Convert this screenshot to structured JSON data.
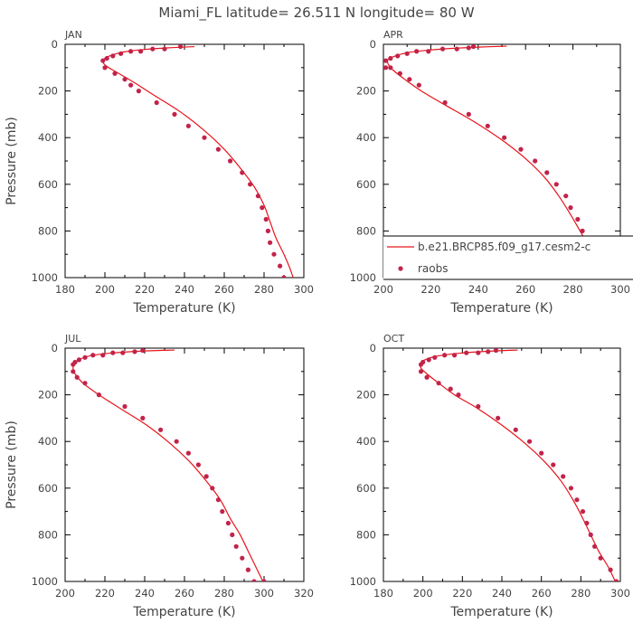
{
  "figure": {
    "title": "Miami_FL   latitude= 26.511 N longitude= 80 W"
  },
  "colors": {
    "model_line": "#e8141a",
    "raobs_marker": "#c2234a",
    "axes": "#000000",
    "text": "#444444"
  },
  "legend": {
    "panel": "APR",
    "placement": "bottom-right",
    "model_label": "b.e21.BRCP85.f09_g17.cesm2-c",
    "obs_label": "raobs"
  },
  "chart_data": [
    {
      "type": "line",
      "panel_label": "JAN",
      "xlabel": "Temperature (K)",
      "ylabel": "Pressure (mb)",
      "xlim": [
        180,
        300
      ],
      "ylim": [
        1000,
        0
      ],
      "xticks": [
        180,
        200,
        220,
        240,
        260,
        280,
        300
      ],
      "yticks": [
        0,
        200,
        400,
        600,
        800,
        1000
      ],
      "grid": false,
      "series": [
        {
          "name": "b.e21.BRCP85.f09_g17.cesm2-c",
          "style": "line",
          "x": [
            245,
            232,
            220,
            210,
            204,
            200,
            199,
            201,
            206,
            214,
            225,
            238,
            250,
            260,
            268,
            275,
            280,
            283,
            286,
            290,
            293,
            295
          ],
          "y": [
            10,
            15,
            22,
            32,
            45,
            60,
            75,
            95,
            120,
            160,
            220,
            290,
            370,
            450,
            530,
            610,
            690,
            760,
            830,
            900,
            960,
            1010
          ]
        },
        {
          "name": "raobs",
          "style": "marker",
          "x": [
            238,
            230,
            224,
            218,
            213,
            208,
            204,
            201,
            199,
            200,
            205,
            210,
            213,
            217,
            226,
            235,
            242,
            250,
            257,
            263,
            269,
            273,
            277,
            279,
            281,
            282,
            283,
            285,
            288,
            290
          ],
          "y": [
            10,
            20,
            20,
            30,
            30,
            40,
            50,
            60,
            70,
            100,
            125,
            150,
            175,
            200,
            250,
            300,
            350,
            400,
            450,
            500,
            550,
            600,
            650,
            700,
            750,
            800,
            850,
            900,
            950,
            1000
          ]
        }
      ]
    },
    {
      "type": "line",
      "panel_label": "APR",
      "xlabel": "Temperature (K)",
      "ylabel": "",
      "xlim": [
        200,
        300
      ],
      "ylim": [
        1000,
        0
      ],
      "xticks": [
        200,
        220,
        240,
        260,
        280,
        300
      ],
      "yticks": [
        0,
        200,
        400,
        600,
        800,
        1000
      ],
      "grid": false,
      "series": [
        {
          "name": "b.e21.BRCP85.f09_g17.cesm2-c",
          "style": "line",
          "x": [
            252,
            240,
            228,
            218,
            210,
            205,
            202,
            202,
            204,
            209,
            216,
            226,
            238,
            250,
            260,
            268,
            274,
            279,
            283,
            287,
            292,
            296
          ],
          "y": [
            8,
            12,
            18,
            26,
            36,
            50,
            65,
            85,
            110,
            150,
            200,
            260,
            330,
            410,
            490,
            570,
            650,
            730,
            800,
            870,
            940,
            1010
          ]
        },
        {
          "name": "raobs",
          "style": "marker",
          "x": [
            238,
            236,
            231,
            225,
            219,
            214,
            210,
            206,
            203,
            201,
            201,
            203,
            207,
            211,
            215,
            226,
            236,
            244,
            251,
            258,
            264,
            269,
            273,
            277,
            279,
            282,
            284,
            286,
            290,
            295
          ],
          "y": [
            10,
            15,
            20,
            20,
            30,
            30,
            40,
            50,
            60,
            70,
            100,
            100,
            125,
            150,
            175,
            250,
            300,
            350,
            400,
            450,
            500,
            550,
            600,
            650,
            700,
            750,
            800,
            850,
            900,
            1000
          ]
        }
      ]
    },
    {
      "type": "line",
      "panel_label": "JUL",
      "xlabel": "Temperature (K)",
      "ylabel": "Pressure (mb)",
      "xlim": [
        200,
        320
      ],
      "ylim": [
        1000,
        0
      ],
      "xticks": [
        200,
        220,
        240,
        260,
        280,
        300,
        320
      ],
      "yticks": [
        0,
        200,
        400,
        600,
        800,
        1000
      ],
      "grid": false,
      "series": [
        {
          "name": "b.e21.BRCP85.f09_g17.cesm2-c",
          "style": "line",
          "x": [
            255,
            240,
            228,
            218,
            211,
            207,
            205,
            204,
            205,
            209,
            217,
            228,
            241,
            253,
            263,
            271,
            278,
            283,
            288,
            292,
            296,
            300
          ],
          "y": [
            8,
            12,
            18,
            26,
            36,
            50,
            65,
            85,
            110,
            150,
            200,
            260,
            330,
            410,
            490,
            570,
            650,
            730,
            800,
            870,
            940,
            1010
          ]
        },
        {
          "name": "raobs",
          "style": "marker",
          "x": [
            239,
            235,
            229,
            224,
            219,
            214,
            210,
            207,
            205,
            204,
            204,
            206,
            210,
            217,
            230,
            239,
            248,
            256,
            262,
            267,
            271,
            274,
            277,
            279,
            282,
            284,
            286,
            289,
            292,
            295,
            300
          ],
          "y": [
            10,
            15,
            20,
            20,
            30,
            30,
            40,
            50,
            60,
            70,
            100,
            125,
            150,
            200,
            250,
            300,
            350,
            400,
            450,
            500,
            550,
            600,
            650,
            700,
            750,
            800,
            850,
            900,
            950,
            1000,
            1000
          ]
        }
      ]
    },
    {
      "type": "line",
      "panel_label": "OCT",
      "xlabel": "Temperature (K)",
      "ylabel": "",
      "xlim": [
        180,
        300
      ],
      "ylim": [
        1000,
        0
      ],
      "xticks": [
        180,
        200,
        220,
        240,
        260,
        280,
        300
      ],
      "yticks": [
        0,
        200,
        400,
        600,
        800,
        1000
      ],
      "grid": false,
      "series": [
        {
          "name": "b.e21.BRCP85.f09_g17.cesm2-c",
          "style": "line",
          "x": [
            248,
            236,
            224,
            214,
            206,
            201,
            199,
            199,
            202,
            208,
            216,
            228,
            240,
            252,
            262,
            270,
            276,
            281,
            285,
            289,
            294,
            298
          ],
          "y": [
            8,
            12,
            18,
            26,
            36,
            50,
            65,
            85,
            110,
            150,
            200,
            260,
            330,
            410,
            490,
            570,
            650,
            730,
            800,
            870,
            940,
            1010
          ]
        },
        {
          "name": "raobs",
          "style": "marker",
          "x": [
            237,
            233,
            228,
            222,
            216,
            211,
            206,
            203,
            200,
            199,
            199,
            202,
            208,
            214,
            218,
            228,
            238,
            247,
            254,
            260,
            266,
            271,
            275,
            278,
            281,
            283,
            285,
            287,
            290,
            295,
            298
          ],
          "y": [
            10,
            15,
            20,
            20,
            30,
            30,
            40,
            50,
            60,
            70,
            100,
            125,
            150,
            175,
            200,
            250,
            300,
            350,
            400,
            450,
            500,
            550,
            600,
            650,
            700,
            750,
            800,
            850,
            900,
            950,
            1000
          ]
        }
      ]
    }
  ]
}
